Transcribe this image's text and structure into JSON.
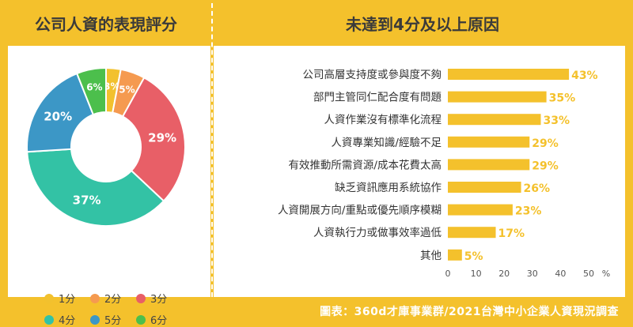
{
  "header": {
    "left_title": "公司人資的表現評分",
    "right_title": "未達到4分及以上原因"
  },
  "footer": {
    "source": "圖表：360d才庫事業群/2021台灣中小企業人資現況調查"
  },
  "chart_data": [
    {
      "type": "pie",
      "style": "donut",
      "title": "公司人資的表現評分",
      "categories": [
        "1分",
        "2分",
        "3分",
        "4分",
        "5分",
        "6分"
      ],
      "values": [
        3,
        5,
        29,
        37,
        20,
        6
      ],
      "labels": [
        "3%",
        "5%",
        "29%",
        "37%",
        "20%",
        "6%"
      ],
      "colors": [
        "#f2c12e",
        "#f59a50",
        "#e85f67",
        "#33c2a5",
        "#3c97c6",
        "#4cbf4c"
      ],
      "legend": "bottom"
    },
    {
      "type": "bar",
      "orientation": "horizontal",
      "title": "未達到4分及以上原因",
      "categories": [
        "公司高層支持度或參與度不夠",
        "部門主管同仁配合度有問題",
        "人資作業沒有標準化流程",
        "人資專業知識/經驗不足",
        "有效推動所需資源/成本花費太高",
        "缺乏資訊應用系統協作",
        "人資開展方向/重點或優先順序模糊",
        "人資執行力或做事效率過低",
        "其他"
      ],
      "values": [
        43,
        35,
        33,
        29,
        29,
        26,
        23,
        17,
        5
      ],
      "labels": [
        "43%",
        "35%",
        "33%",
        "29%",
        "29%",
        "26%",
        "23%",
        "17%",
        "5%"
      ],
      "xlim": [
        0,
        50
      ],
      "xticks": [
        "0",
        "10",
        "20",
        "30",
        "40",
        "50"
      ],
      "xunit": "%",
      "color": "#f4c12c"
    }
  ]
}
